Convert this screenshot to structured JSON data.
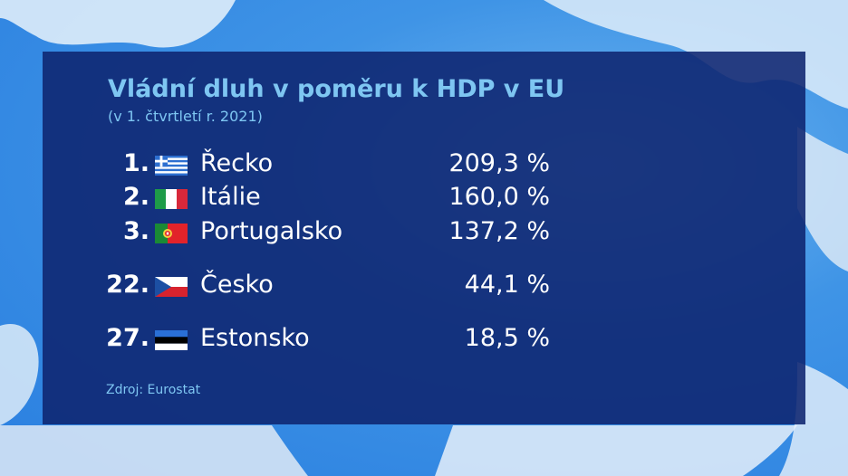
{
  "title": "Vládní dluh v poměru k HDP v EU",
  "subtitle": "(v 1. čtvrtletí r. 2021)",
  "rows": [
    {
      "rank": "1.",
      "country": "Řecko",
      "flag": "greece-flag-icon",
      "value": "209,3 %"
    },
    {
      "rank": "2.",
      "country": "Itálie",
      "flag": "italy-flag-icon",
      "value": "160,0 %"
    },
    {
      "rank": "3.",
      "country": "Portugalsko",
      "flag": "portugal-flag-icon",
      "value": "137,2 %"
    },
    {
      "rank": "22.",
      "country": "Česko",
      "flag": "czechia-flag-icon",
      "value": "44,1 %"
    },
    {
      "rank": "27.",
      "country": "Estonsko",
      "flag": "estonia-flag-icon",
      "value": "18,5 %"
    }
  ],
  "source": "Zdroj: Eurostat",
  "colors": {
    "panel": "#0e2470",
    "heading": "#7ec6f2",
    "text": "#ffffff"
  }
}
